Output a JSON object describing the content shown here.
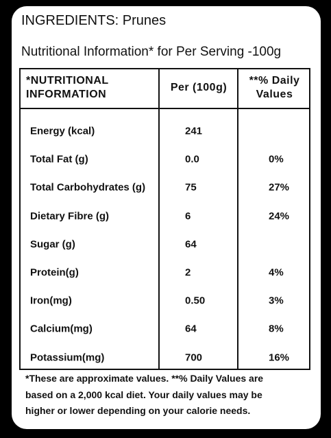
{
  "header": {
    "ingredients": "INGREDIENTS: Prunes",
    "subtitle": "Nutritional Information* for Per Serving -100g"
  },
  "table": {
    "columns": [
      "*NUTRITIONAL INFORMATION",
      "Per (100g)",
      "**% Daily Values"
    ],
    "rows": [
      [
        "Energy (kcal)",
        "241"
      ],
      [
        "Total Fat (g)",
        "0.0",
        "0%"
      ],
      [
        "Total Carbohydrates (g)",
        "75",
        "27%"
      ],
      [
        "Dietary Fibre (g)",
        "6",
        "24%"
      ],
      [
        "Sugar (g)",
        "64"
      ],
      [
        "Protein(g)",
        "2",
        "4%"
      ],
      [
        "Iron(mg)",
        "0.50",
        "3%"
      ],
      [
        "Calcium(mg)",
        "64",
        "8%"
      ],
      [
        "Potassium(mg)",
        "700",
        "16%"
      ]
    ]
  },
  "footnote": [
    "*These are approximate values. **% Daily Values are",
    "based on a 2,000 kcal diet. Your daily values may be",
    "higher or lower depending on your calorie needs."
  ]
}
